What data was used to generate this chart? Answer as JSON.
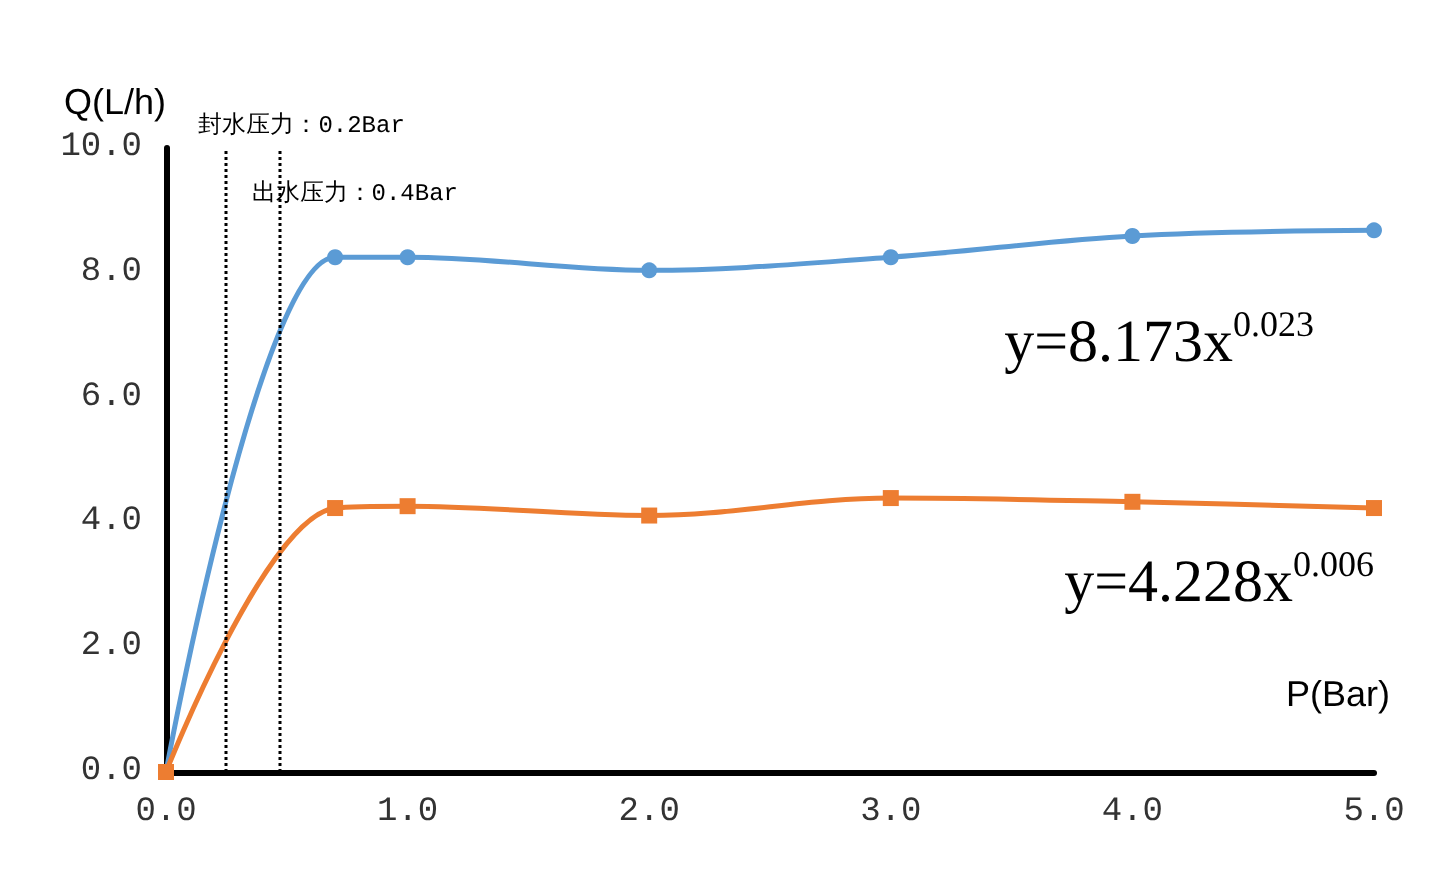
{
  "chart_data": {
    "type": "line",
    "xlabel": "P(Bar)",
    "ylabel": "Q(L/h)",
    "xlim": [
      0,
      5
    ],
    "ylim": [
      0,
      10
    ],
    "xticks": [
      {
        "value": 0,
        "label": "0.0"
      },
      {
        "value": 1,
        "label": "1.0"
      },
      {
        "value": 2,
        "label": "2.0"
      },
      {
        "value": 3,
        "label": "3.0"
      },
      {
        "value": 4,
        "label": "4.0"
      },
      {
        "value": 5,
        "label": "5.0"
      }
    ],
    "yticks": [
      {
        "value": 0,
        "label": "0.0"
      },
      {
        "value": 2,
        "label": "2.0"
      },
      {
        "value": 4,
        "label": "4.0"
      },
      {
        "value": 6,
        "label": "6.0"
      },
      {
        "value": 8,
        "label": "8.0"
      },
      {
        "value": 10,
        "label": "10.0"
      }
    ],
    "series": [
      {
        "color": "#5b9bd5",
        "marker": "circle",
        "x": [
          0,
          0.7,
          1,
          2,
          3,
          4,
          5
        ],
        "values": [
          0,
          8.25,
          8.25,
          8.04,
          8.25,
          8.59,
          8.68
        ]
      },
      {
        "color": "#ed7d31",
        "marker": "square",
        "x": [
          0,
          0.7,
          1,
          2,
          3,
          4,
          5
        ],
        "values": [
          0,
          4.23,
          4.26,
          4.11,
          4.39,
          4.33,
          4.23
        ]
      }
    ],
    "ref_lines": [
      {
        "axis": "x",
        "value": 0.25,
        "label": "封水压力：0.2Bar",
        "line_style": "dotted",
        "color": "#000000"
      },
      {
        "axis": "x",
        "value": 0.47,
        "label": "出水压力：0.4Bar",
        "line_style": "dotted",
        "color": "#000000"
      }
    ],
    "annotations": [
      "y=8.173x$^{0.023}$",
      "y=4.228x$^{0.006}$"
    ],
    "grid": false
  }
}
